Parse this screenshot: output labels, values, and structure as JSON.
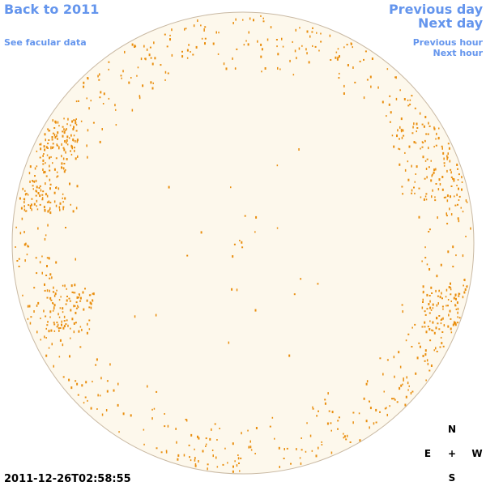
{
  "nav": {
    "back": "Back to 2011",
    "facular": "See facular data",
    "previous_day": "Previous day",
    "next_day": "Next day",
    "previous_hour": "Previous hour",
    "next_hour": "Next hour"
  },
  "timestamp": "2011-12-26T02:58:55",
  "compass": {
    "north": "N",
    "east": "E",
    "center": "+",
    "west": "W",
    "south": "S"
  }
}
